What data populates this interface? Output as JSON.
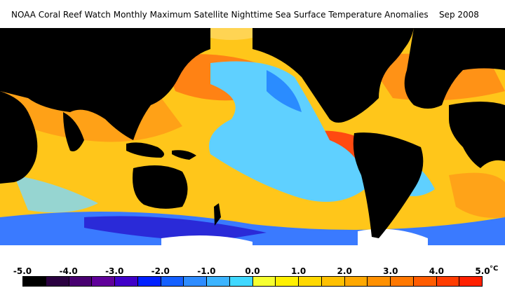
{
  "title": "NOAA Coral Reef Watch Monthly Maximum Satellite Nighttime Sea Surface Temperature Anomalies",
  "date": "Sep 2008",
  "colors": {
    "land": "#000000",
    "ice": "#ffffff",
    "ocean_neutral": "#ffd21a",
    "warm": "#ff8a18",
    "hot": "#ff4a10",
    "cool": "#5fd0ff",
    "cold": "#2a6cff",
    "very_cold": "#2a2ad8"
  },
  "legend": {
    "ticks": [
      "-5.0",
      "-4.0",
      "-3.0",
      "-2.0",
      "-1.0",
      "0.0",
      "1.0",
      "2.0",
      "3.0",
      "4.0",
      "5.0"
    ],
    "unit": "°C",
    "swatches": [
      "#000000",
      "#2a0040",
      "#480070",
      "#60009a",
      "#4000c8",
      "#0020ff",
      "#1460ff",
      "#2e8cff",
      "#3cb4ff",
      "#40d8ff",
      "#f6ff30",
      "#fff000",
      "#ffd800",
      "#ffc000",
      "#ffa800",
      "#ff9000",
      "#ff7800",
      "#ff5c00",
      "#ff3c00",
      "#ff2000"
    ]
  }
}
